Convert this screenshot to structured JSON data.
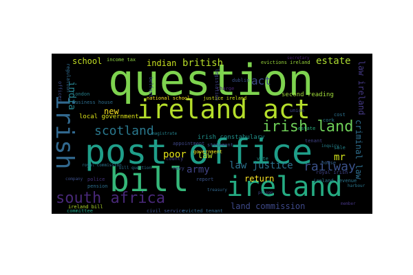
{
  "cloud": {
    "background": "#000000",
    "words": [
      {
        "text": "question",
        "color": "#7ed34f"
      },
      {
        "text": "ireland act",
        "color": "#b5de2b"
      },
      {
        "text": "post office",
        "color": "#1f9e89"
      },
      {
        "text": "bill",
        "color": "#35b779"
      },
      {
        "text": "ireland",
        "color": "#25ab82"
      },
      {
        "text": "irish",
        "color": "#31688e"
      },
      {
        "text": "south africa",
        "color": "#482878"
      },
      {
        "text": "irish land",
        "color": "#6ece58"
      },
      {
        "text": "scotland",
        "color": "#2a788e"
      },
      {
        "text": "india",
        "color": "#26828e"
      },
      {
        "text": "school",
        "color": "#c2df23"
      },
      {
        "text": "indian",
        "color": "#c8e020"
      },
      {
        "text": "british",
        "color": "#b8de29"
      },
      {
        "text": "estate",
        "color": "#addc30"
      },
      {
        "text": "act",
        "color": "#3e4a89"
      },
      {
        "text": "mr",
        "color": "#d2e21b"
      },
      {
        "text": "railway",
        "color": "#3b528b"
      },
      {
        "text": "new",
        "color": "#fde725"
      },
      {
        "text": "poor",
        "color": "#e5e419"
      },
      {
        "text": "law",
        "color": "#b5de2b"
      },
      {
        "text": "army",
        "color": "#414487"
      },
      {
        "text": "law justice",
        "color": "#2c728e"
      },
      {
        "text": "return",
        "color": "#fde725"
      },
      {
        "text": "land commission",
        "color": "#3e4989"
      },
      {
        "text": "criminal law",
        "color": "#2e6e8e"
      },
      {
        "text": "law ireland",
        "color": "#443983"
      },
      {
        "text": "irish constabulary",
        "color": "#21918c"
      },
      {
        "text": "local government",
        "color": "#dde318"
      },
      {
        "text": "second reading",
        "color": "#a0da39"
      },
      {
        "text": "income tax",
        "color": "#90d743"
      },
      {
        "text": "national school",
        "color": "#fde725"
      },
      {
        "text": "justice ireland",
        "color": "#d0e11c"
      },
      {
        "text": "evictions ireland",
        "color": "#9bd93c"
      },
      {
        "text": "appointment",
        "color": "#3f4788"
      },
      {
        "text": "government",
        "color": "#f1e51d"
      },
      {
        "text": "committee",
        "color": "#20a386"
      },
      {
        "text": "pension",
        "color": "#2d708e"
      },
      {
        "text": "police",
        "color": "#46337f"
      },
      {
        "text": "navy",
        "color": "#404588"
      },
      {
        "text": "report",
        "color": "#3a548c"
      },
      {
        "text": "ireland bill",
        "color": "#b2dd2d"
      },
      {
        "text": "civil service",
        "color": "#3b528b"
      },
      {
        "text": "evicted tenant",
        "color": "#31688e"
      },
      {
        "text": "ireland revenue",
        "color": "#2a768e"
      },
      {
        "text": "royal irish",
        "color": "#404387"
      },
      {
        "text": "london",
        "color": "#26818e"
      },
      {
        "text": "officer",
        "color": "#3d4d8a"
      },
      {
        "text": "business house",
        "color": "#2e6d8e"
      },
      {
        "text": "estate",
        "color": "#29af7f"
      },
      {
        "text": "sale",
        "color": "#24868e"
      },
      {
        "text": "cost",
        "color": "#2d718e"
      },
      {
        "text": "house",
        "color": "#33638d"
      },
      {
        "text": "union",
        "color": "#3f4889"
      },
      {
        "text": "charge",
        "color": "#482475"
      },
      {
        "text": "belfast",
        "color": "#3e4c8a"
      },
      {
        "text": "legislation",
        "color": "#404688"
      },
      {
        "text": "regulation",
        "color": "#2f6b8e"
      },
      {
        "text": "dublin",
        "color": "#3a538b"
      },
      {
        "text": "county",
        "color": "#433e85"
      },
      {
        "text": "cork",
        "color": "#2a788e"
      },
      {
        "text": "tenant",
        "color": "#414287"
      },
      {
        "text": "vote",
        "color": "#20928c"
      },
      {
        "text": "statement",
        "color": "#3d4e8a"
      },
      {
        "text": "royal commission",
        "color": "#2b748e"
      },
      {
        "text": "bill question",
        "color": "#2c738e"
      },
      {
        "text": "secretary",
        "color": "#481f70"
      },
      {
        "text": "company",
        "color": "#3c4f8a"
      },
      {
        "text": "treasury",
        "color": "#31688e"
      },
      {
        "text": "member",
        "color": "#453581"
      },
      {
        "text": "harbour",
        "color": "#2a778e"
      },
      {
        "text": "inquiry",
        "color": "#26828e"
      },
      {
        "text": "prison",
        "color": "#3e4989"
      },
      {
        "text": "magistrate",
        "color": "#25838e"
      }
    ]
  }
}
